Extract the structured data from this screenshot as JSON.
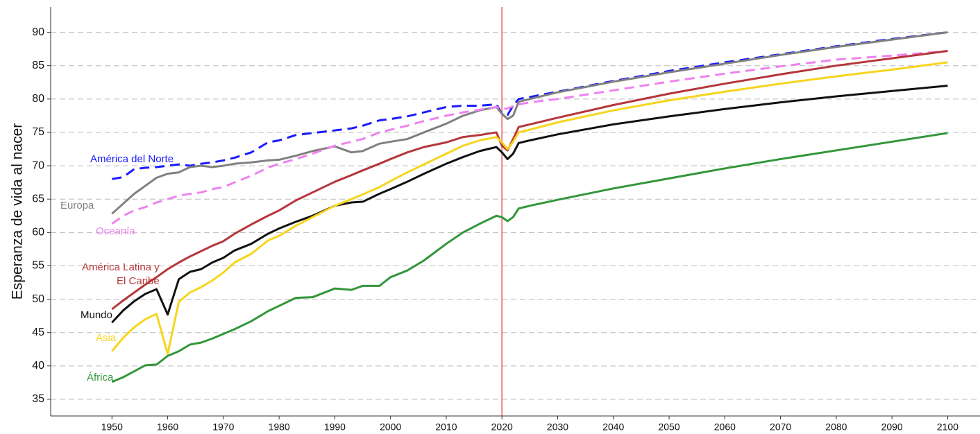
{
  "chart_data": {
    "type": "line",
    "ylabel": "Esperanza de vida al nacer",
    "x": [
      1950,
      1952,
      1954,
      1956,
      1958,
      1960,
      1962,
      1964,
      1966,
      1968,
      1970,
      1972,
      1975,
      1978,
      1980,
      1983,
      1986,
      1990,
      1993,
      1995,
      1998,
      2000,
      2003,
      2006,
      2010,
      2013,
      2016,
      2019,
      2020,
      2021,
      2022,
      2023,
      2025,
      2030,
      2040,
      2050,
      2060,
      2070,
      2080,
      2090,
      2100
    ],
    "xlim": [
      1939,
      2105.8
    ],
    "xticks": [
      1950,
      1960,
      1970,
      1980,
      1990,
      2000,
      2010,
      2020,
      2030,
      2040,
      2050,
      2060,
      2070,
      2080,
      2090,
      2100
    ],
    "ylim": [
      32.5,
      93.8
    ],
    "yticks": [
      35,
      40,
      45,
      50,
      55,
      60,
      65,
      70,
      75,
      80,
      85,
      90
    ],
    "grid": true,
    "vline": 2020,
    "vline_color": "#f08080",
    "series": [
      {
        "name": "América del Norte",
        "color": "#1a1aff",
        "dash": true,
        "values": [
          68.0,
          68.3,
          69.5,
          69.7,
          69.8,
          70.0,
          70.2,
          70.0,
          70.3,
          70.5,
          70.8,
          71.2,
          72.0,
          73.5,
          73.8,
          74.6,
          74.9,
          75.3,
          75.6,
          76.0,
          76.8,
          77.0,
          77.4,
          78.0,
          78.8,
          79.0,
          79.0,
          79.2,
          77.8,
          77.6,
          79.0,
          80.0,
          80.3,
          81.1,
          82.7,
          84.2,
          85.5,
          86.7,
          87.9,
          89.0,
          90.0
        ]
      },
      {
        "name": "Europa",
        "color": "#808080",
        "dash": false,
        "values": [
          62.8,
          64.3,
          65.8,
          67.0,
          68.2,
          68.8,
          69.0,
          69.8,
          70.0,
          69.8,
          70.0,
          70.3,
          70.5,
          70.8,
          70.9,
          71.5,
          72.2,
          72.9,
          72.0,
          72.2,
          73.3,
          73.6,
          74.0,
          75.0,
          76.3,
          77.5,
          78.3,
          78.8,
          77.8,
          77.0,
          77.5,
          79.6,
          80.0,
          81.0,
          82.6,
          84.0,
          85.3,
          86.6,
          87.8,
          88.9,
          90.0
        ]
      },
      {
        "name": "Oceanía",
        "color": "#ee82ee",
        "dash": true,
        "values": [
          61.3,
          62.5,
          63.3,
          63.8,
          64.5,
          65.0,
          65.5,
          65.8,
          66.0,
          66.5,
          66.8,
          67.5,
          68.5,
          69.7,
          70.3,
          71.0,
          71.8,
          73.0,
          73.6,
          74.0,
          75.0,
          75.4,
          76.0,
          76.7,
          77.5,
          78.0,
          78.4,
          78.8,
          78.5,
          78.6,
          78.9,
          79.2,
          79.5,
          80.0,
          81.3,
          82.6,
          83.8,
          84.9,
          85.9,
          86.5,
          87.2
        ]
      },
      {
        "name": "América Latina y\nEl Caribe",
        "color": "#b5363a",
        "dash": false,
        "values": [
          48.5,
          49.8,
          51.0,
          52.2,
          53.3,
          54.5,
          55.5,
          56.4,
          57.2,
          58.0,
          58.7,
          59.8,
          61.2,
          62.5,
          63.3,
          64.8,
          66.0,
          67.6,
          68.6,
          69.3,
          70.3,
          71.0,
          72.0,
          72.8,
          73.5,
          74.3,
          74.6,
          75.0,
          73.0,
          72.3,
          74.0,
          75.8,
          76.2,
          77.2,
          79.1,
          80.8,
          82.3,
          83.7,
          85.0,
          86.1,
          87.2
        ]
      },
      {
        "name": "Mundo",
        "color": "#111111",
        "dash": false,
        "values": [
          46.5,
          48.3,
          49.7,
          50.8,
          51.5,
          47.7,
          53.0,
          54.1,
          54.5,
          55.5,
          56.2,
          57.3,
          58.3,
          59.8,
          60.6,
          61.6,
          62.5,
          64.0,
          64.5,
          64.6,
          65.8,
          66.5,
          67.6,
          68.8,
          70.3,
          71.3,
          72.2,
          72.8,
          72.0,
          71.0,
          71.8,
          73.4,
          73.8,
          74.7,
          76.2,
          77.4,
          78.5,
          79.5,
          80.4,
          81.2,
          82.0
        ]
      },
      {
        "name": "Asia",
        "color": "#f7d51d",
        "dash": false,
        "values": [
          42.2,
          44.2,
          45.8,
          47.0,
          47.8,
          41.8,
          49.6,
          51.0,
          51.8,
          52.8,
          54.0,
          55.5,
          56.8,
          58.8,
          59.5,
          61.0,
          62.3,
          64.0,
          65.0,
          65.7,
          66.8,
          67.7,
          69.0,
          70.2,
          71.8,
          73.0,
          73.8,
          74.3,
          73.5,
          72.5,
          73.6,
          75.0,
          75.4,
          76.5,
          78.3,
          79.8,
          81.1,
          82.3,
          83.4,
          84.4,
          85.5
        ]
      },
      {
        "name": "África",
        "color": "#33963a",
        "dash": false,
        "values": [
          37.6,
          38.3,
          39.2,
          40.1,
          40.2,
          41.5,
          42.2,
          43.2,
          43.5,
          44.1,
          44.8,
          45.5,
          46.7,
          48.2,
          49.0,
          50.2,
          50.3,
          51.6,
          51.4,
          52.0,
          52.0,
          53.3,
          54.3,
          55.8,
          58.3,
          60.0,
          61.3,
          62.5,
          62.3,
          61.7,
          62.3,
          63.6,
          64.0,
          64.9,
          66.6,
          68.1,
          69.6,
          71.0,
          72.3,
          73.6,
          74.9
        ]
      }
    ]
  }
}
